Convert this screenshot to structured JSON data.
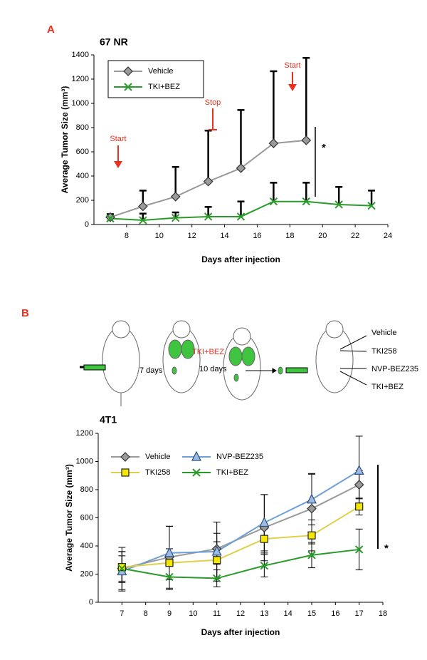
{
  "panels": {
    "a": "A",
    "b": "B"
  },
  "diagram": {
    "steps": [
      "7 days",
      "TKI+BEZ",
      "10 days"
    ],
    "groups": [
      "Vehicle",
      "TKI258",
      "NVP-BEZ235",
      "TKI+BEZ"
    ]
  },
  "chart_data": [
    {
      "type": "line",
      "title": "67 NR",
      "xlabel": "Days after injection",
      "ylabel": "Average Tumor Size (mm³)",
      "xlim": [
        6,
        24
      ],
      "xticks": [
        8,
        10,
        12,
        14,
        16,
        18,
        20,
        22,
        24
      ],
      "ylim": [
        0,
        1400
      ],
      "yticks": [
        0,
        200,
        400,
        600,
        800,
        1000,
        1200,
        1400
      ],
      "error_bars": "upper",
      "legend": "upper left",
      "legend_frame": true,
      "legend_columns": 1,
      "series": [
        {
          "name": "Vehicle",
          "color": "#9a9a9a",
          "marker": "diamond",
          "marker_color": "#9a9a9a",
          "x": [
            7,
            9,
            11,
            13,
            15,
            17,
            19
          ],
          "values": [
            60,
            150,
            230,
            355,
            465,
            670,
            695
          ],
          "errors": [
            25,
            130,
            245,
            420,
            480,
            595,
            680
          ]
        },
        {
          "name": "TKI+BEZ",
          "color": "#2a9a2a",
          "marker": "x",
          "marker_color": "#2a9a2a",
          "x": [
            7,
            9,
            11,
            13,
            15,
            17,
            19,
            21,
            23
          ],
          "values": [
            50,
            35,
            55,
            65,
            65,
            190,
            190,
            165,
            155
          ],
          "errors": [
            35,
            55,
            45,
            80,
            125,
            155,
            155,
            145,
            125
          ]
        }
      ],
      "annotations": [
        {
          "text": "Start",
          "color": "#e8311f"
        },
        {
          "text": "Stop",
          "color": "#e8311f"
        },
        {
          "text": "Start",
          "color": "#e8311f"
        },
        {
          "text": "*",
          "color": "#000000"
        }
      ]
    },
    {
      "type": "line",
      "title": "4T1",
      "xlabel": "Days after injection",
      "ylabel": "Average Tumor Size (mm³)",
      "xlim": [
        6,
        18
      ],
      "xticks": [
        7,
        8,
        9,
        10,
        11,
        12,
        13,
        14,
        15,
        16,
        17,
        18
      ],
      "ylim": [
        0,
        1200
      ],
      "yticks": [
        0,
        200,
        400,
        600,
        800,
        1000,
        1200
      ],
      "error_bars": "both",
      "legend": "upper left",
      "legend_frame": false,
      "legend_columns": 2,
      "series": [
        {
          "name": "Vehicle",
          "color": "#9a9a9a",
          "marker": "diamond",
          "marker_color": "#9a9a9a",
          "x": [
            7,
            9,
            11,
            13,
            15,
            17
          ],
          "values": [
            240,
            320,
            380,
            530,
            665,
            835
          ],
          "errors": [
            90,
            220,
            110,
            235,
            250,
            100
          ]
        },
        {
          "name": "NVP-BEZ235",
          "color": "#6f9fd6",
          "marker": "triangle",
          "marker_color": "#9dbbe3",
          "x": [
            7,
            9,
            11,
            13,
            15,
            17
          ],
          "values": [
            220,
            350,
            360,
            565,
            730,
            935
          ],
          "errors": [
            140,
            190,
            210,
            200,
            180,
            245
          ]
        },
        {
          "name": "TKI258",
          "color": "#e0cf48",
          "marker": "square",
          "marker_color": "#f5e800",
          "x": [
            7,
            9,
            11,
            13,
            15,
            17
          ],
          "values": [
            250,
            280,
            300,
            450,
            475,
            680
          ],
          "errors": [
            110,
            100,
            130,
            100,
            110,
            60
          ]
        },
        {
          "name": "TKI+BEZ",
          "color": "#2a9a2a",
          "marker": "x",
          "marker_color": "#2a9a2a",
          "x": [
            7,
            9,
            11,
            13,
            15,
            17
          ],
          "values": [
            240,
            180,
            170,
            260,
            335,
            375
          ],
          "errors": [
            150,
            90,
            60,
            80,
            90,
            145
          ]
        }
      ],
      "annotations": [
        {
          "text": "*",
          "color": "#000000"
        }
      ]
    }
  ]
}
